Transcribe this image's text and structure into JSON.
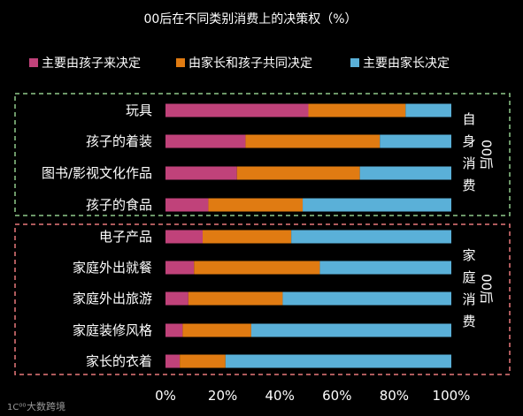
{
  "chart_data": {
    "type": "bar",
    "orientation": "horizontal",
    "stacked": true,
    "title": "00后在不同类别消费上的决策权（%）",
    "categories": [
      "玩具",
      "孩子的着装",
      "图书/影视文化作品",
      "孩子的食品",
      "电子产品",
      "家庭外出就餐",
      "家庭外出旅游",
      "家庭装修风格",
      "家长的衣着"
    ],
    "series": [
      {
        "name": "主要由孩子来决定",
        "color": "#c0427a",
        "values": [
          50,
          28,
          25,
          15,
          13,
          10,
          8,
          6,
          5
        ]
      },
      {
        "name": "由家长和孩子共同决定",
        "color": "#e07b12",
        "values": [
          34,
          47,
          43,
          33,
          31,
          44,
          33,
          24,
          16
        ]
      },
      {
        "name": "主要由家长决定",
        "color": "#5ab0d8",
        "values": [
          16,
          25,
          32,
          52,
          56,
          46,
          59,
          70,
          79
        ]
      }
    ],
    "xlim": [
      0,
      100
    ],
    "x_ticks": [
      "0%",
      "20%",
      "40%",
      "60%",
      "80%",
      "100%"
    ],
    "legend_position": "top",
    "groups": [
      {
        "label_lines": [
          "自",
          "身",
          "消",
          "费"
        ],
        "side_label": "00后",
        "color": "#8fc98a",
        "start": 0,
        "end": 3
      },
      {
        "label_lines": [
          "家",
          "庭",
          "消",
          "费"
        ],
        "side_label": "00后",
        "color": "#e8787b",
        "start": 4,
        "end": 8
      }
    ]
  },
  "watermark": "大数跨境"
}
